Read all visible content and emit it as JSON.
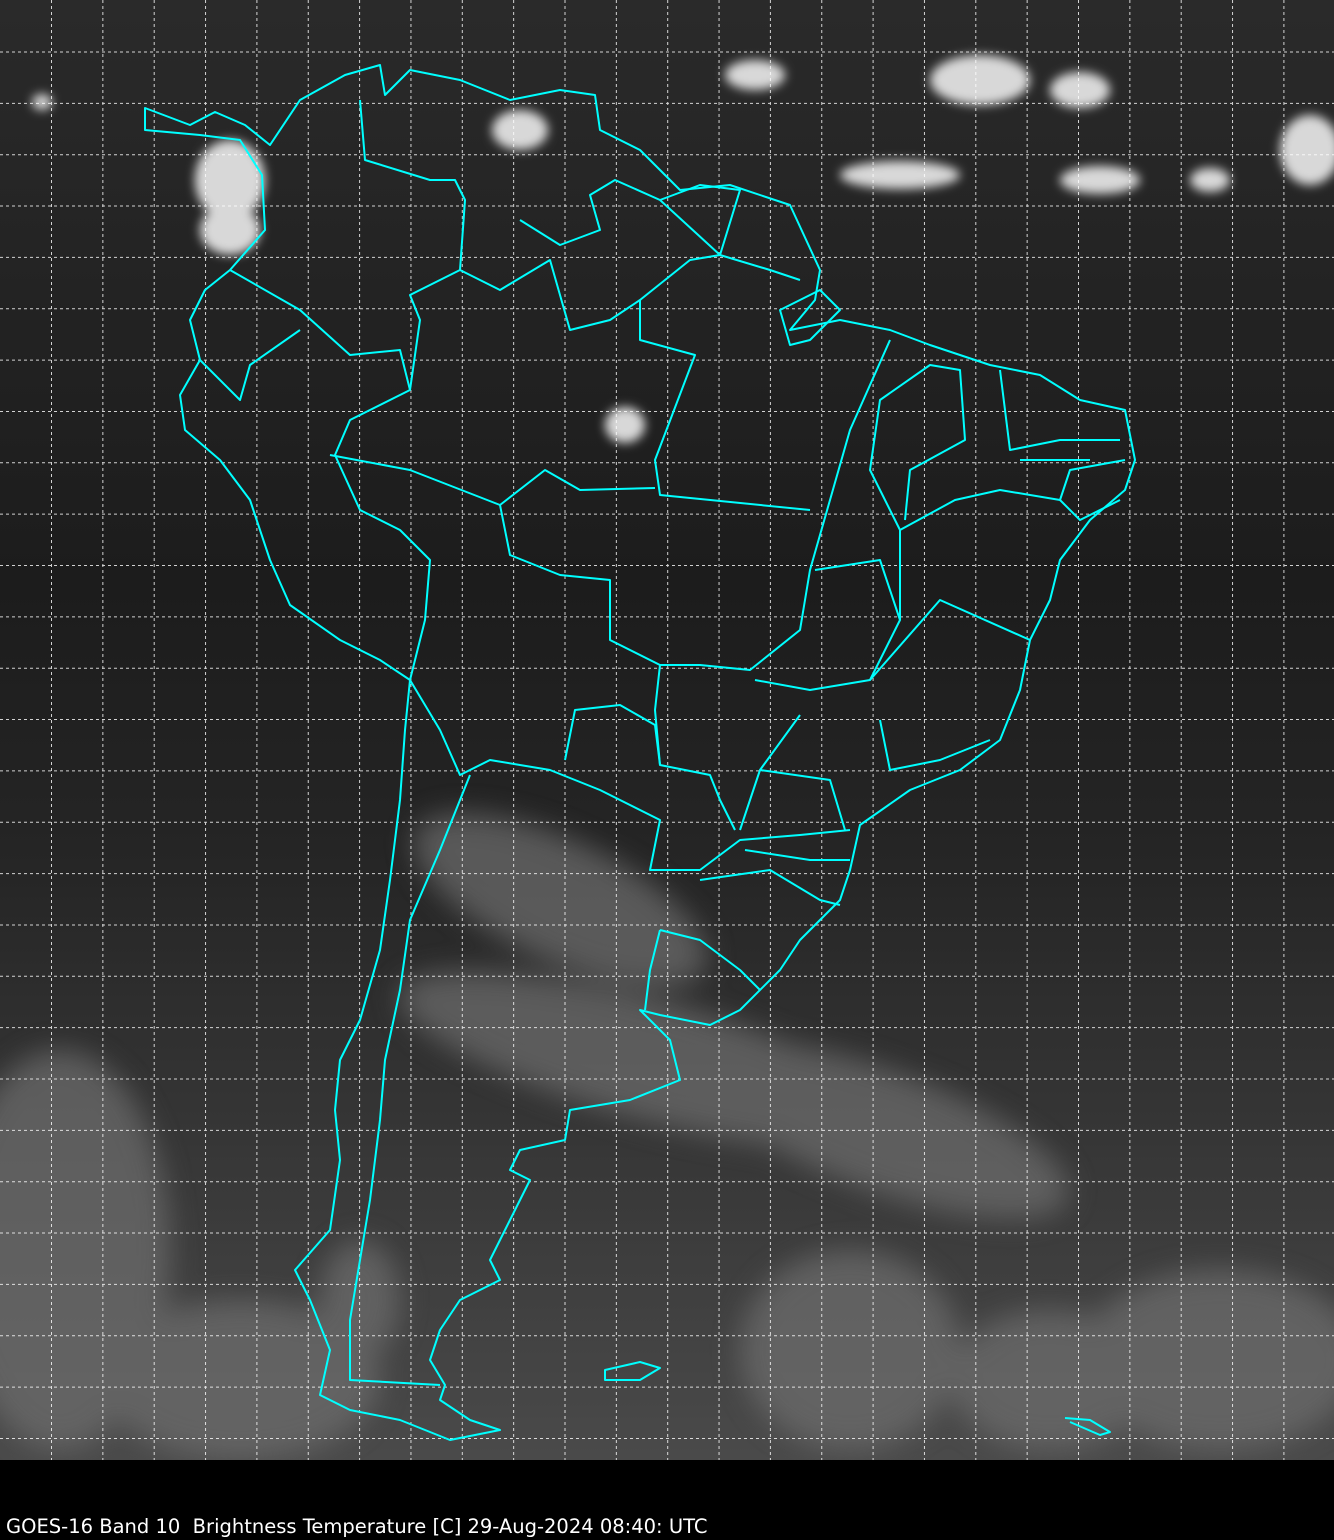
{
  "caption": "GOES-16 Band 10  Brightness Temperature [C] 29-Aug-2024 08:40: UTC",
  "map": {
    "imagery": "infrared satellite brightness temperature (grayscale)",
    "outline_color": "#00ffff",
    "grid_color": "#ffffff",
    "grid_style": "dashed",
    "background": "#000000"
  }
}
